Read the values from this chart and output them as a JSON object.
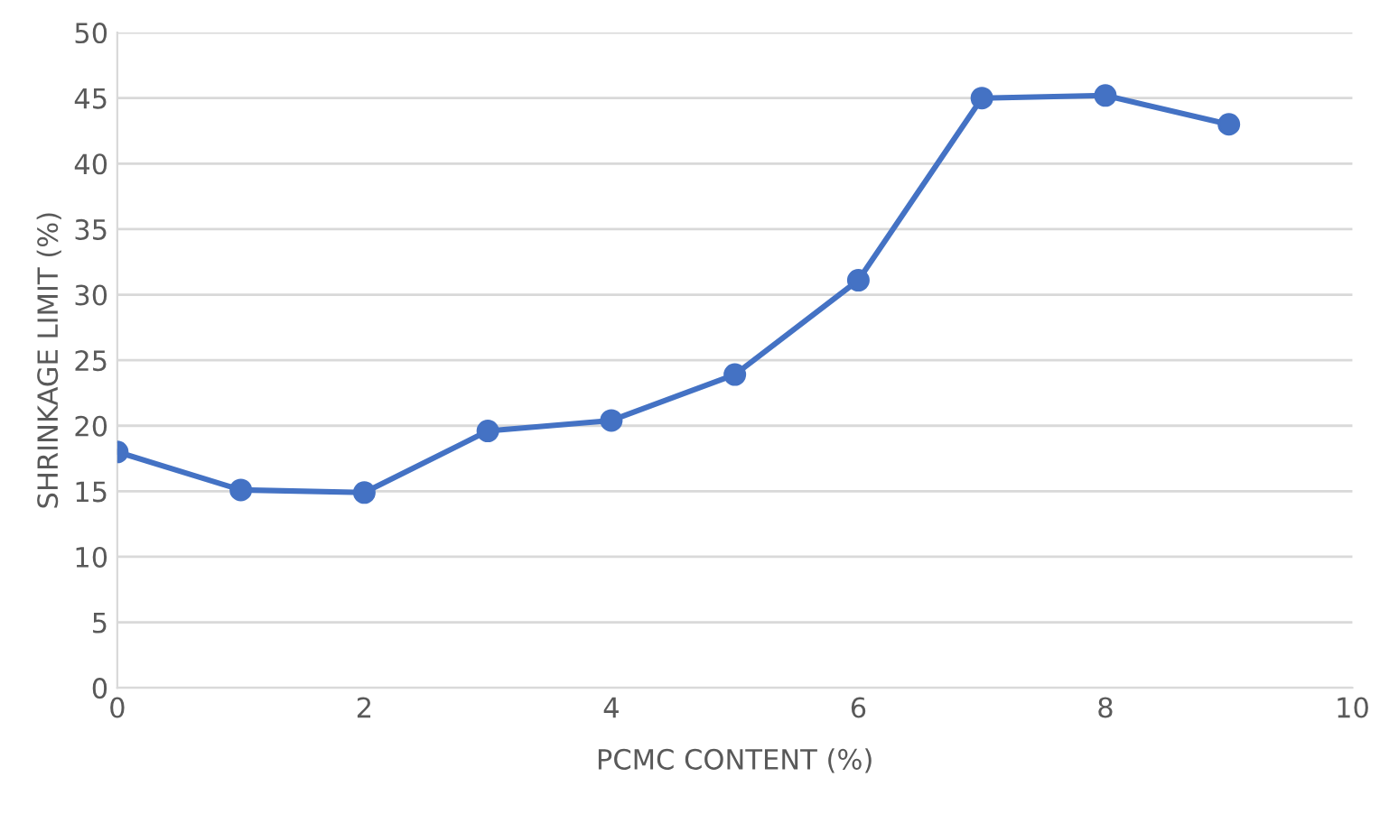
{
  "chart_data": {
    "type": "line",
    "xlabel": "PCMC CONTENT (%)",
    "ylabel": "SHRINKAGE LIMIT (%)",
    "x": [
      0,
      1,
      2,
      3,
      4,
      5,
      6,
      7,
      8,
      9
    ],
    "series": [
      {
        "color": "#4472c4",
        "values": [
          18,
          15.1,
          14.9,
          19.6,
          20.4,
          23.9,
          31.1,
          45.0,
          45.2,
          43.0
        ]
      }
    ],
    "xlim": [
      0,
      10
    ],
    "xticks": [
      0,
      2,
      4,
      6,
      8,
      10
    ],
    "ylim": [
      0,
      50
    ],
    "yticks": [
      0,
      5,
      10,
      15,
      20,
      25,
      30,
      35,
      40,
      45,
      50
    ],
    "grid": "y",
    "marker": "circle",
    "line_style": "solid"
  }
}
